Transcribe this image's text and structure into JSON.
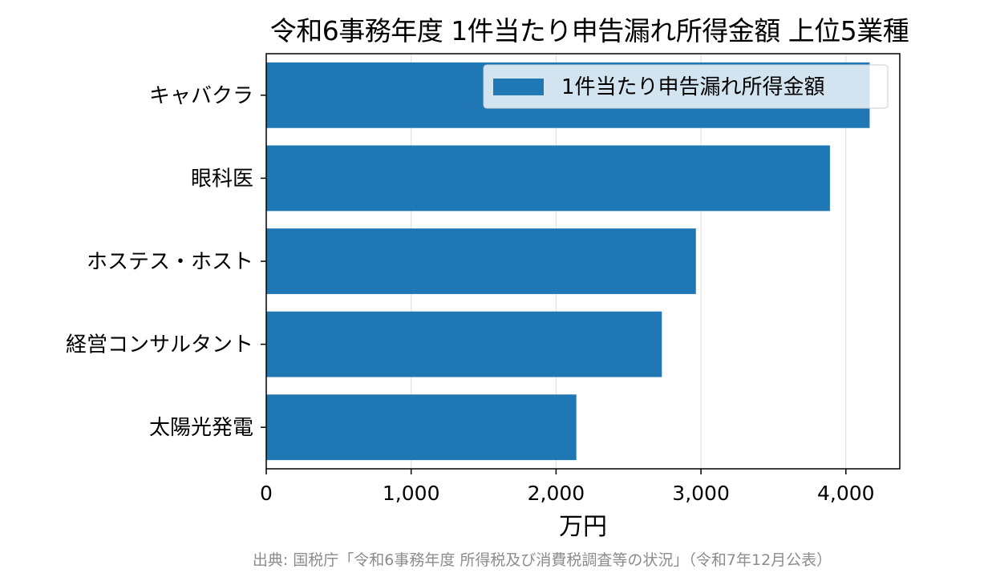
{
  "chart_data": {
    "type": "bar",
    "orientation": "horizontal",
    "title": "令和6事務年度 1件当たり申告漏れ所得金額 上位5業種",
    "categories": [
      "キャバクラ",
      "眼科医",
      "ホステス・ホスト",
      "経営コンサルタント",
      "太陽光発電"
    ],
    "series": [
      {
        "name": "1件当たり申告漏れ所得金額",
        "values": [
          4164,
          3890,
          2965,
          2730,
          2140
        ],
        "color": "#1f77b4"
      }
    ],
    "xlabel": "万円",
    "ylabel": "",
    "xlim": [
      0,
      4372
    ],
    "xticks": [
      0,
      1000,
      2000,
      3000,
      4000
    ],
    "xtick_labels": [
      "0",
      "1,000",
      "2,000",
      "3,000",
      "4,000"
    ],
    "grid": "x-axis vertical lines",
    "legend_position": "top-right"
  },
  "source_note": "出典: 国税庁「令和6事務年度 所得税及び消費税調査等の状況」（令和7年12月公表）"
}
